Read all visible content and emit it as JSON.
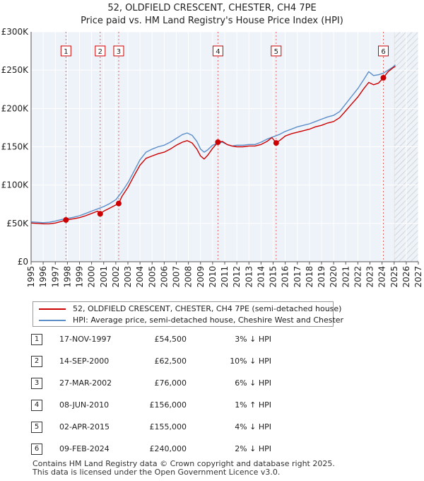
{
  "chart_data": {
    "type": "line",
    "title": "52, OLDFIELD CRESCENT, CHESTER, CH4 7PE",
    "subtitle": "Price paid vs. HM Land Registry's House Price Index (HPI)",
    "xlabel": "",
    "ylabel": "",
    "xlim": [
      1995,
      2027
    ],
    "ylim": [
      0,
      300000
    ],
    "x_ticks": [
      "1995",
      "1996",
      "1997",
      "1998",
      "1999",
      "2000",
      "2001",
      "2002",
      "2003",
      "2004",
      "2005",
      "2006",
      "2007",
      "2008",
      "2009",
      "2010",
      "2011",
      "2012",
      "2013",
      "2014",
      "2015",
      "2016",
      "2017",
      "2018",
      "2019",
      "2020",
      "2021",
      "2022",
      "2023",
      "2024",
      "2025",
      "2026",
      "2027"
    ],
    "y_ticks": [
      {
        "value": 0,
        "label": "£0"
      },
      {
        "value": 50000,
        "label": "£50K"
      },
      {
        "value": 100000,
        "label": "£100K"
      },
      {
        "value": 150000,
        "label": "£150K"
      },
      {
        "value": 200000,
        "label": "£200K"
      },
      {
        "value": 250000,
        "label": "£250K"
      },
      {
        "value": 300000,
        "label": "£300K"
      }
    ],
    "grid": true,
    "forecast_from": 2025.0,
    "series": [
      {
        "name": "52, OLDFIELD CRESCENT, CHESTER, CH4 7PE (semi-detached house)",
        "color": "#cc0000",
        "points": [
          [
            1995.0,
            50500
          ],
          [
            1995.5,
            50000
          ],
          [
            1996.0,
            49500
          ],
          [
            1996.5,
            49500
          ],
          [
            1997.0,
            50500
          ],
          [
            1997.5,
            52500
          ],
          [
            1997.88,
            54500
          ],
          [
            1998.5,
            56000
          ],
          [
            1999.0,
            57500
          ],
          [
            1999.5,
            60000
          ],
          [
            2000.0,
            63000
          ],
          [
            2000.5,
            66000
          ],
          [
            2000.71,
            62500
          ],
          [
            2001.0,
            66000
          ],
          [
            2001.5,
            70000
          ],
          [
            2002.0,
            74000
          ],
          [
            2002.24,
            76000
          ],
          [
            2002.5,
            85000
          ],
          [
            2003.0,
            97000
          ],
          [
            2003.5,
            112000
          ],
          [
            2004.0,
            126000
          ],
          [
            2004.5,
            135000
          ],
          [
            2005.0,
            138000
          ],
          [
            2005.5,
            141000
          ],
          [
            2006.0,
            143000
          ],
          [
            2006.5,
            147000
          ],
          [
            2007.0,
            152000
          ],
          [
            2007.5,
            156000
          ],
          [
            2007.9,
            158000
          ],
          [
            2008.3,
            155000
          ],
          [
            2008.7,
            147000
          ],
          [
            2009.0,
            138000
          ],
          [
            2009.3,
            134000
          ],
          [
            2009.6,
            139000
          ],
          [
            2010.0,
            148000
          ],
          [
            2010.44,
            156000
          ],
          [
            2010.8,
            157000
          ],
          [
            2011.2,
            153000
          ],
          [
            2011.6,
            151000
          ],
          [
            2012.0,
            150000
          ],
          [
            2012.5,
            150000
          ],
          [
            2013.0,
            151000
          ],
          [
            2013.5,
            151000
          ],
          [
            2014.0,
            153000
          ],
          [
            2014.5,
            157000
          ],
          [
            2014.9,
            162000
          ],
          [
            2015.25,
            155000
          ],
          [
            2015.6,
            159000
          ],
          [
            2016.0,
            164000
          ],
          [
            2016.5,
            167000
          ],
          [
            2017.0,
            169000
          ],
          [
            2017.5,
            171000
          ],
          [
            2018.0,
            173000
          ],
          [
            2018.5,
            176000
          ],
          [
            2019.0,
            178000
          ],
          [
            2019.5,
            181000
          ],
          [
            2020.0,
            183000
          ],
          [
            2020.5,
            188000
          ],
          [
            2021.0,
            197000
          ],
          [
            2021.5,
            206000
          ],
          [
            2022.0,
            215000
          ],
          [
            2022.5,
            226000
          ],
          [
            2022.9,
            234000
          ],
          [
            2023.3,
            231000
          ],
          [
            2023.7,
            233000
          ],
          [
            2024.11,
            240000
          ],
          [
            2024.5,
            248000
          ],
          [
            2024.9,
            253000
          ],
          [
            2025.1,
            255000
          ]
        ]
      },
      {
        "name": "HPI: Average price, semi-detached house, Cheshire West and Chester",
        "color": "#5b8ec9",
        "points": [
          [
            1995.0,
            52000
          ],
          [
            1995.5,
            51500
          ],
          [
            1996.0,
            51000
          ],
          [
            1996.5,
            51500
          ],
          [
            1997.0,
            53000
          ],
          [
            1997.5,
            55000
          ],
          [
            1998.0,
            56500
          ],
          [
            1998.5,
            58000
          ],
          [
            1999.0,
            60000
          ],
          [
            1999.5,
            63000
          ],
          [
            2000.0,
            66000
          ],
          [
            2000.5,
            69000
          ],
          [
            2001.0,
            72000
          ],
          [
            2001.5,
            76000
          ],
          [
            2002.0,
            81000
          ],
          [
            2002.5,
            91000
          ],
          [
            2003.0,
            103000
          ],
          [
            2003.5,
            118000
          ],
          [
            2004.0,
            133000
          ],
          [
            2004.5,
            143000
          ],
          [
            2005.0,
            147000
          ],
          [
            2005.5,
            150000
          ],
          [
            2006.0,
            152000
          ],
          [
            2006.5,
            156000
          ],
          [
            2007.0,
            161000
          ],
          [
            2007.5,
            166000
          ],
          [
            2007.9,
            168000
          ],
          [
            2008.3,
            165000
          ],
          [
            2008.7,
            157000
          ],
          [
            2009.0,
            147000
          ],
          [
            2009.3,
            143000
          ],
          [
            2009.6,
            146000
          ],
          [
            2010.0,
            152000
          ],
          [
            2010.5,
            155000
          ],
          [
            2010.8,
            156000
          ],
          [
            2011.2,
            153000
          ],
          [
            2011.6,
            151000
          ],
          [
            2012.0,
            152000
          ],
          [
            2012.5,
            152000
          ],
          [
            2013.0,
            153000
          ],
          [
            2013.5,
            153000
          ],
          [
            2014.0,
            156000
          ],
          [
            2014.5,
            160000
          ],
          [
            2015.0,
            163000
          ],
          [
            2015.5,
            166000
          ],
          [
            2016.0,
            170000
          ],
          [
            2016.5,
            173000
          ],
          [
            2017.0,
            176000
          ],
          [
            2017.5,
            178000
          ],
          [
            2018.0,
            180000
          ],
          [
            2018.5,
            183000
          ],
          [
            2019.0,
            186000
          ],
          [
            2019.5,
            189000
          ],
          [
            2020.0,
            191000
          ],
          [
            2020.5,
            196000
          ],
          [
            2021.0,
            206000
          ],
          [
            2021.5,
            216000
          ],
          [
            2022.0,
            226000
          ],
          [
            2022.5,
            238000
          ],
          [
            2022.9,
            248000
          ],
          [
            2023.3,
            243000
          ],
          [
            2023.7,
            244000
          ],
          [
            2024.1,
            246000
          ],
          [
            2024.5,
            250000
          ],
          [
            2024.9,
            254000
          ],
          [
            2025.1,
            257000
          ]
        ]
      }
    ],
    "markers": [
      {
        "label": "1",
        "x": 1997.88,
        "value": 54500
      },
      {
        "label": "2",
        "x": 2000.71,
        "value": 62500
      },
      {
        "label": "3",
        "x": 2002.24,
        "value": 76000
      },
      {
        "label": "4",
        "x": 2010.44,
        "value": 156000
      },
      {
        "label": "5",
        "x": 2015.25,
        "value": 155000
      },
      {
        "label": "6",
        "x": 2024.11,
        "value": 240000
      }
    ]
  },
  "legend": {
    "property_label": "52, OLDFIELD CRESCENT, CHESTER, CH4 7PE (semi-detached house)",
    "hpi_label": "HPI: Average price, semi-detached house, Cheshire West and Chester"
  },
  "sales": [
    {
      "num": "1",
      "date": "17-NOV-1997",
      "price": "£54,500",
      "hpi": "3% ↓ HPI"
    },
    {
      "num": "2",
      "date": "14-SEP-2000",
      "price": "£62,500",
      "hpi": "10% ↓ HPI"
    },
    {
      "num": "3",
      "date": "27-MAR-2002",
      "price": "£76,000",
      "hpi": "6% ↓ HPI"
    },
    {
      "num": "4",
      "date": "08-JUN-2010",
      "price": "£156,000",
      "hpi": "1% ↑ HPI"
    },
    {
      "num": "5",
      "date": "02-APR-2015",
      "price": "£155,000",
      "hpi": "4% ↓ HPI"
    },
    {
      "num": "6",
      "date": "09-FEB-2024",
      "price": "£240,000",
      "hpi": "2% ↓ HPI"
    }
  ],
  "footer": {
    "line1": "Contains HM Land Registry data © Crown copyright and database right 2025.",
    "line2": "This data is licensed under the Open Government Licence v3.0."
  }
}
